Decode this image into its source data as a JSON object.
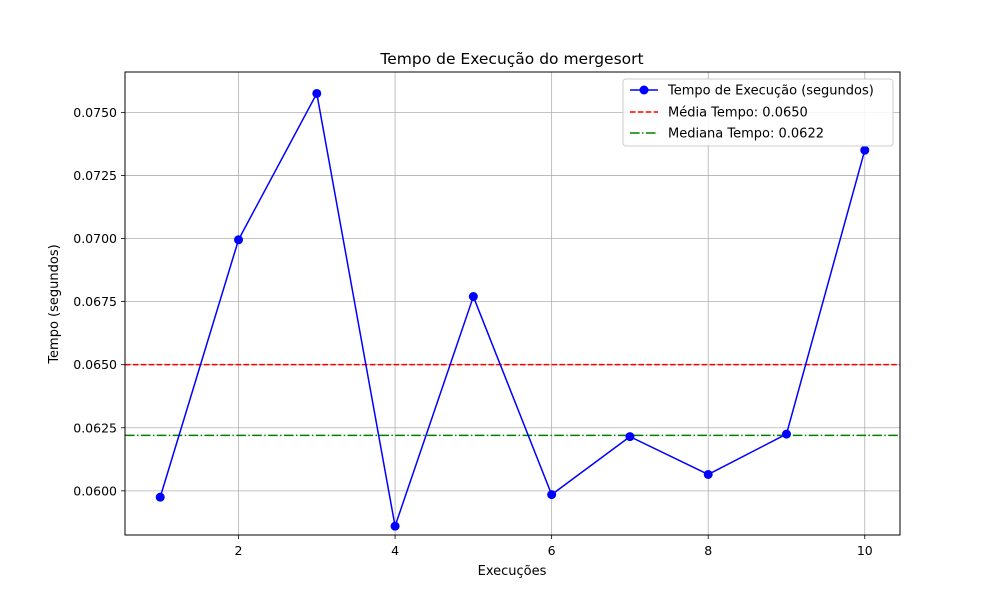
{
  "chart_data": {
    "type": "line",
    "title": "Tempo de Execução do mergesort",
    "xlabel": "Execuções",
    "ylabel": "Tempo (segundos)",
    "xlim": [
      0.55,
      10.45
    ],
    "ylim": [
      0.05825,
      0.0766
    ],
    "xticks": [
      2,
      4,
      6,
      8,
      10
    ],
    "yticks": [
      0.06,
      0.0625,
      0.065,
      0.0675,
      0.07,
      0.0725,
      0.075
    ],
    "ytick_labels": [
      "0.0600",
      "0.0625",
      "0.0650",
      "0.0675",
      "0.0700",
      "0.0725",
      "0.0750"
    ],
    "grid": true,
    "legend_position": "top-right",
    "series": [
      {
        "name": "Tempo de Execução (segundos)",
        "color": "#0000ff",
        "marker": "circle",
        "x": [
          1,
          2,
          3,
          4,
          5,
          6,
          7,
          8,
          9,
          10
        ],
        "values": [
          0.05975,
          0.06995,
          0.07575,
          0.0586,
          0.0677,
          0.05985,
          0.06215,
          0.06065,
          0.06225,
          0.0735
        ]
      }
    ],
    "reference_lines": [
      {
        "name": "Média Tempo: 0.0650",
        "value": 0.065,
        "color": "#ff0000",
        "style": "dashed"
      },
      {
        "name": "Mediana Tempo: 0.0622",
        "value": 0.0622,
        "color": "#008000",
        "style": "dashdot"
      }
    ]
  }
}
